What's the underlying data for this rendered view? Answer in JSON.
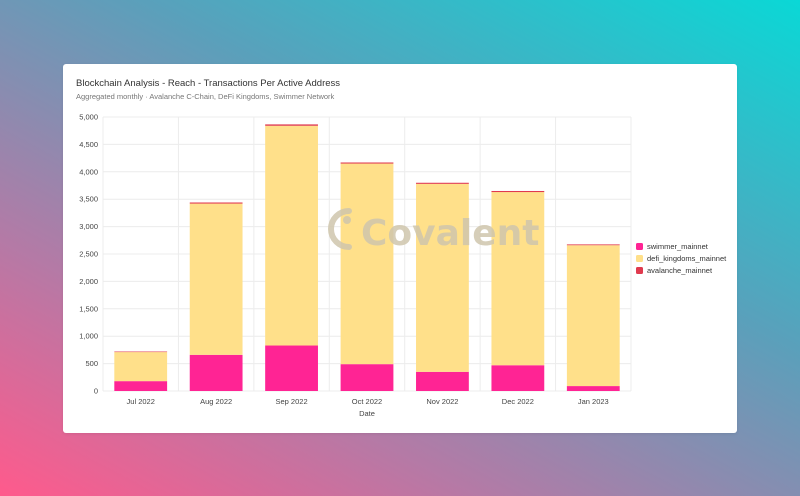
{
  "header": {
    "title": "Blockchain Analysis - Reach - Transactions Per Active Address",
    "subtitle": "Aggregated monthly · Avalanche C-Chain, DeFi Kingdoms, Swimmer Network"
  },
  "watermark": {
    "text": "Covalent"
  },
  "chart_data": {
    "type": "bar",
    "stacked": true,
    "categories": [
      "Jul 2022",
      "Aug 2022",
      "Sep 2022",
      "Oct 2022",
      "Nov 2022",
      "Dec 2022",
      "Jan 2023"
    ],
    "series": [
      {
        "name": "swimmer_mainnet",
        "color": "#ff2494",
        "values": [
          180,
          660,
          830,
          490,
          350,
          470,
          90
        ]
      },
      {
        "name": "defi_kingdoms_mainnet",
        "color": "#ffe08a",
        "values": [
          530,
          2760,
          4010,
          3660,
          3430,
          3160,
          2570
        ]
      },
      {
        "name": "avalanche_mainnet",
        "color": "#e03a4e",
        "values": [
          10,
          20,
          25,
          20,
          20,
          20,
          15
        ]
      }
    ],
    "ylim": [
      0,
      5000
    ],
    "yticks": [
      0,
      500,
      1000,
      1500,
      2000,
      2500,
      3000,
      3500,
      4000,
      4500,
      5000
    ],
    "ytick_labels": [
      "0",
      "500",
      "1,000",
      "1,500",
      "2,000",
      "2,500",
      "3,000",
      "3,500",
      "4,000",
      "4,500",
      "5,000"
    ],
    "xlabel": "Date",
    "ylabel": "",
    "grid": true,
    "legend": "right"
  }
}
